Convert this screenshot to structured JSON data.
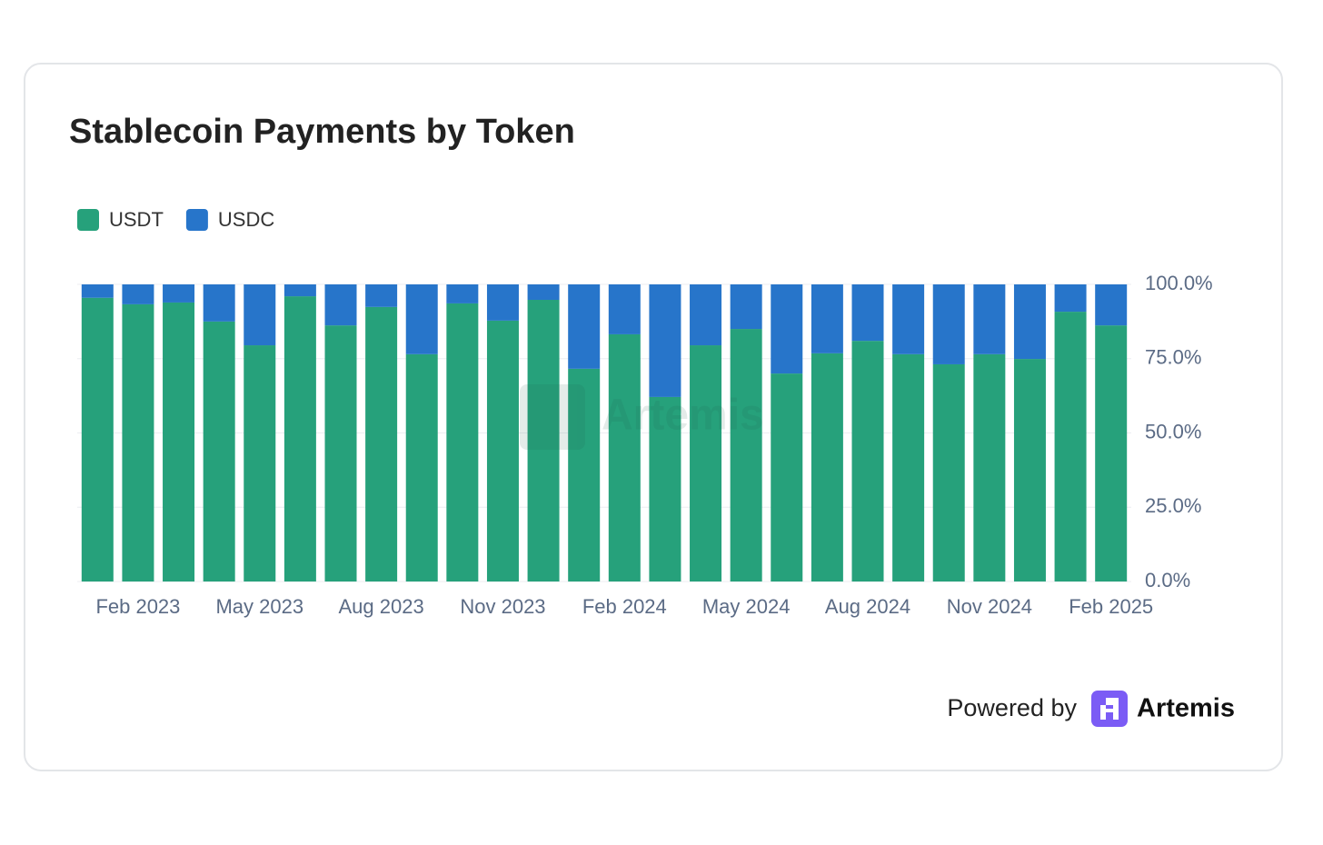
{
  "chart_data": {
    "type": "stacked_bar",
    "title": "Stablecoin Payments by Token",
    "categories": [
      null,
      "Feb 2023",
      null,
      null,
      "May 2023",
      null,
      null,
      "Aug 2023",
      null,
      null,
      "Nov 2023",
      null,
      null,
      "Feb 2024",
      null,
      null,
      "May 2024",
      null,
      null,
      "Aug 2024",
      null,
      null,
      "Nov 2024",
      null,
      null,
      "Feb 2025"
    ],
    "series": [
      {
        "name": "USDT",
        "color": "#26a17b",
        "values": [
          95.5,
          93.3,
          93.9,
          87.5,
          79.5,
          96.0,
          86.2,
          92.4,
          76.5,
          93.6,
          87.8,
          94.8,
          71.6,
          83.2,
          62.1,
          79.5,
          85.0,
          70.0,
          76.8,
          81.0,
          76.5,
          73.1,
          76.5,
          74.9,
          90.8,
          86.2
        ]
      },
      {
        "name": "USDC",
        "color": "#2775ca",
        "values": [
          4.5,
          6.7,
          6.1,
          12.5,
          20.5,
          4.0,
          13.8,
          7.6,
          23.5,
          6.4,
          12.2,
          5.2,
          28.4,
          16.8,
          37.9,
          20.5,
          15.0,
          30.0,
          23.2,
          19.0,
          23.5,
          26.9,
          23.5,
          25.1,
          9.2,
          13.8
        ]
      }
    ],
    "ylim": [
      0,
      100
    ],
    "yticks": [
      {
        "value": 0,
        "label": "0.0%"
      },
      {
        "value": 25,
        "label": "25.0%"
      },
      {
        "value": 50,
        "label": "50.0%"
      },
      {
        "value": 75,
        "label": "75.0%"
      },
      {
        "value": 100,
        "label": "100.0%"
      }
    ],
    "grid": true,
    "legend": "top-left",
    "y_axis_side": "right",
    "watermark": "Artemis"
  },
  "footer": {
    "prefix": "Powered by",
    "brand": "Artemis"
  }
}
